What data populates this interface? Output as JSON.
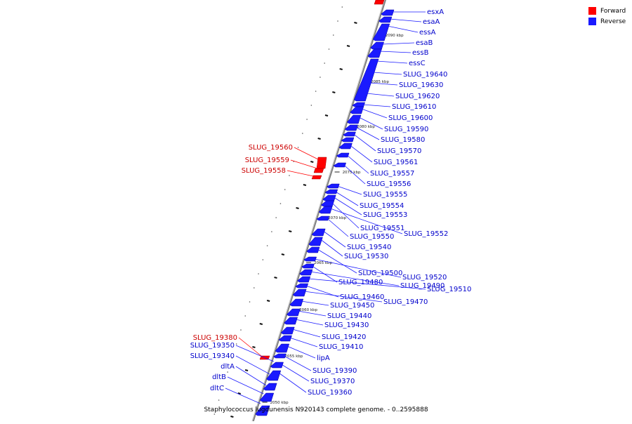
{
  "colors": {
    "forward": "#ff0000",
    "reverse": "#1a1aff",
    "forward_label": "#cc0000",
    "reverse_label": "#0000cc",
    "axis": "#808080"
  },
  "legend": {
    "forward_label": "Forward",
    "reverse_label": "Reverse"
  },
  "caption": "Staphylococcus lugdunensis N920143 complete genome. - 0..2595888",
  "ticks": [
    "2090 kbp",
    "2085 kbp",
    "2080 kbp",
    "2075 kbp",
    "2070 kbp",
    "2065 kbp",
    "2060 kbp",
    "2055 kbp",
    "2050 kbp"
  ],
  "forward_genes": [
    "SLUG_19560",
    "SLUG_19559",
    "SLUG_19558",
    "SLUG_19380"
  ],
  "reverse_genes": [
    "esxA",
    "esaA",
    "essA",
    "esaB",
    "essB",
    "essC",
    "SLUG_19640",
    "SLUG_19630",
    "SLUG_19620",
    "SLUG_19610",
    "SLUG_19600",
    "SLUG_19590",
    "SLUG_19580",
    "SLUG_19570",
    "SLUG_19561",
    "SLUG_19557",
    "SLUG_19556",
    "SLUG_19555",
    "SLUG_19554",
    "SLUG_19553",
    "SLUG_19551",
    "SLUG_19552",
    "SLUG_19550",
    "SLUG_19540",
    "SLUG_19530",
    "SLUG_19500",
    "SLUG_19520",
    "SLUG_19480",
    "SLUG_19490",
    "SLUG_19510",
    "SLUG_19460",
    "SLUG_19470",
    "SLUG_19450",
    "SLUG_19440",
    "SLUG_19430",
    "SLUG_19420",
    "SLUG_19410",
    "lipA",
    "SLUG_19390",
    "SLUG_19370",
    "SLUG_19360",
    "SLUG_19350",
    "SLUG_19340",
    "dltA",
    "dltB",
    "dltC"
  ]
}
